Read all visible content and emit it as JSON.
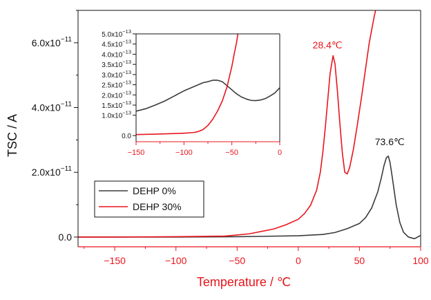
{
  "chart_data": [
    {
      "type": "line",
      "xlabel": "Temperature / ℃",
      "ylabel": "TSC / A",
      "xlim": [
        -180,
        100
      ],
      "ylim": [
        -3e-12,
        7e-11
      ],
      "x_ticks": [
        -150,
        -100,
        -50,
        0,
        50,
        100
      ],
      "x_tick_labels": [
        "−150",
        "−100",
        "−50",
        "0",
        "50",
        "100"
      ],
      "y_ticks": [
        0,
        2e-11,
        4e-11,
        6e-11
      ],
      "y_tick_labels": [
        {
          "mantissa": "0.0",
          "exp": ""
        },
        {
          "mantissa": "2.0x10",
          "exp": "−11"
        },
        {
          "mantissa": "4.0x10",
          "exp": "−11"
        },
        {
          "mantissa": "6.0x10",
          "exp": "−11"
        }
      ],
      "grid": false,
      "legend_position": "lower-left",
      "axis_accent_color": "#e8141b",
      "series": [
        {
          "name": "DEHP 0%",
          "color": "#3a3a3a",
          "x": [
            -180,
            -150,
            -100,
            -50,
            0,
            20,
            30,
            40,
            50,
            55,
            60,
            65,
            68,
            70,
            72,
            73.6,
            75,
            77,
            80,
            83,
            86,
            90,
            95,
            100
          ],
          "y": [
            0,
            0.0,
            0.0,
            1e-13,
            4e-13,
            8e-13,
            1.4e-12,
            2.6e-12,
            4.2e-12,
            6e-12,
            9e-12,
            1.4e-11,
            1.85e-11,
            2.2e-11,
            2.45e-11,
            2.5e-11,
            2.3e-11,
            1.8e-11,
            1e-11,
            4.5e-12,
            1.5e-12,
            0.0,
            -5e-13,
            5e-13
          ]
        },
        {
          "name": "DEHP 30%",
          "color": "#e8141b",
          "x": [
            -180,
            -150,
            -100,
            -60,
            -40,
            -20,
            -10,
            0,
            5,
            10,
            15,
            18,
            20,
            22,
            24,
            26,
            28.4,
            30,
            32,
            34,
            36,
            38,
            40,
            42,
            45,
            48,
            52,
            55,
            58,
            62,
            66
          ],
          "y": [
            0,
            0.0,
            1e-13,
            3e-13,
            1e-12,
            2.5e-12,
            3.8e-12,
            5.5e-12,
            7.2e-12,
            9.8e-12,
            1.45e-11,
            2e-11,
            2.6e-11,
            3.35e-11,
            4.2e-11,
            5.05e-11,
            5.6e-11,
            5.35e-11,
            4.5e-11,
            3.5e-11,
            2.6e-11,
            2e-11,
            1.95e-11,
            2.15e-11,
            2.7e-11,
            3.4e-11,
            4.4e-11,
            5.2e-11,
            6e-11,
            6.8e-11,
            7.5e-11
          ]
        }
      ],
      "annotations": [
        {
          "text": "28.4℃",
          "x": 28.4,
          "y": 5.6e-11,
          "color": "#e8141b"
        },
        {
          "text": "73.6℃",
          "x": 73.6,
          "y": 2.5e-11,
          "color": "#111111"
        }
      ]
    },
    {
      "type": "line",
      "role": "inset",
      "xlabel": "",
      "ylabel": "",
      "xlim": [
        -150,
        0
      ],
      "ylim": [
        -3e-14,
        5e-13
      ],
      "x_ticks": [
        -150,
        -100,
        -50,
        0
      ],
      "x_tick_labels": [
        "−150",
        "−100",
        "−50",
        "0"
      ],
      "y_ticks": [
        0,
        1e-13,
        1.5e-13,
        2e-13,
        2.5e-13,
        3e-13,
        3.5e-13,
        4e-13,
        4.5e-13,
        5e-13
      ],
      "y_tick_labels": [
        {
          "mantissa": "0.0",
          "exp": ""
        },
        {
          "mantissa": "1.0x10",
          "exp": "−13"
        },
        {
          "mantissa": "1.5x10",
          "exp": "−13"
        },
        {
          "mantissa": "2.0x10",
          "exp": "−13"
        },
        {
          "mantissa": "2.5x10",
          "exp": "−13"
        },
        {
          "mantissa": "3.0x10",
          "exp": "−13"
        },
        {
          "mantissa": "3.5x10",
          "exp": "−13"
        },
        {
          "mantissa": "4.0x10",
          "exp": "−13"
        },
        {
          "mantissa": "4.5x10",
          "exp": "−13"
        },
        {
          "mantissa": "5.0x10",
          "exp": "−13"
        }
      ],
      "y_ticks_note": "",
      "grid": false,
      "series": [
        {
          "name": "",
          "color": "#3a3a3a",
          "x": [
            -150,
            -140,
            -130,
            -120,
            -110,
            -100,
            -90,
            -80,
            -75,
            -70,
            -65,
            -60,
            -55,
            -50,
            -45,
            -40,
            -35,
            -30,
            -25,
            -20,
            -15,
            -10,
            -5,
            0
          ],
          "y": [
            1.2e-13,
            1.32e-13,
            1.5e-13,
            1.7e-13,
            1.95e-13,
            2.2e-13,
            2.4e-13,
            2.6e-13,
            2.65e-13,
            2.72e-13,
            2.72e-13,
            2.65e-13,
            2.45e-13,
            2.25e-13,
            2.05e-13,
            1.9e-13,
            1.8e-13,
            1.73e-13,
            1.72e-13,
            1.75e-13,
            1.82e-13,
            1.95e-13,
            2.1e-13,
            2.35e-13
          ]
        },
        {
          "name": "",
          "color": "#e8141b",
          "x": [
            -150,
            -130,
            -110,
            -100,
            -90,
            -85,
            -80,
            -75,
            -70,
            -65,
            -60,
            -55,
            -52,
            -50,
            -48,
            -45,
            -43
          ],
          "y": [
            5e-15,
            7e-15,
            1e-14,
            1.2e-14,
            1.5e-14,
            2e-14,
            3e-14,
            5e-14,
            8e-14,
            1.2e-13,
            1.7e-13,
            2.4e-13,
            3e-13,
            3.4e-13,
            3.9e-13,
            4.6e-13,
            5.2e-13
          ]
        }
      ]
    }
  ]
}
